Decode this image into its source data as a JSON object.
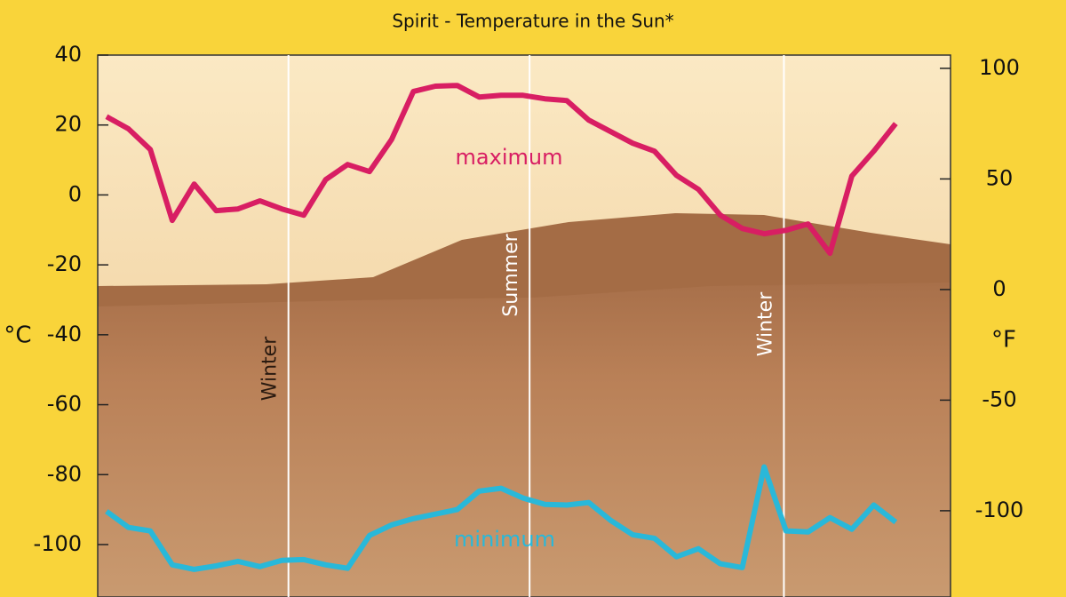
{
  "chart_data": {
    "type": "line",
    "title": "Spirit - Temperature in the Sun*",
    "y_label": "°C",
    "y2_label": "°F",
    "x": [
      0,
      1,
      2,
      3,
      4,
      5,
      6,
      7,
      8,
      9,
      10,
      11,
      12,
      13,
      14,
      15,
      16,
      17,
      18,
      19,
      20,
      21,
      22,
      23,
      24,
      25,
      26,
      27,
      28,
      29,
      30,
      31,
      32,
      33,
      34,
      35,
      36
    ],
    "xlim": [
      -0.4,
      38.5
    ],
    "ylim": [
      -115,
      40
    ],
    "yticks": [
      -100,
      -80,
      -60,
      -40,
      -20,
      0,
      20,
      40
    ],
    "y2lim": [
      -139,
      106
    ],
    "y2ticks": [
      -100,
      -50,
      0,
      50,
      100
    ],
    "series": [
      {
        "name": "maximum",
        "color": "#d81e63",
        "values": [
          22.4,
          18.9,
          13,
          -7.3,
          3.1,
          -4.5,
          -4,
          -1.7,
          -4,
          -5.8,
          4.4,
          8.7,
          6.7,
          15.8,
          29.6,
          31.1,
          31.3,
          28,
          28.5,
          28.5,
          27.5,
          27,
          21.4,
          18.1,
          14.8,
          12.5,
          5.6,
          1.6,
          -5.8,
          -9.6,
          -11.1,
          -10.1,
          -8.3,
          -16.7,
          5.4,
          12.5,
          20.4
        ]
      },
      {
        "name": "minimum",
        "color": "#29b8d9",
        "values": [
          -90.5,
          -95.1,
          -96.1,
          -105.8,
          -107.1,
          -106.1,
          -104.8,
          -106.3,
          -104.5,
          -104.3,
          -105.8,
          -106.8,
          -97.4,
          -94.4,
          -92.6,
          -91.3,
          -90,
          -84.7,
          -83.9,
          -86.7,
          -88.5,
          -88.7,
          -88,
          -93.1,
          -97.2,
          -98.2,
          -103.5,
          -101.2,
          -105.5,
          -106.6,
          -77.8,
          -96.1,
          -96.4,
          -92.3,
          -95.6,
          -88.7,
          -93.6
        ]
      }
    ],
    "annotations": [
      {
        "x": 8.3,
        "label": "Winter",
        "color": "#2a1a10"
      },
      {
        "x": 19.3,
        "label": "Summer",
        "color": "#ffffff"
      },
      {
        "x": 30.9,
        "label": "Winter",
        "color": "#ffffff"
      }
    ]
  }
}
